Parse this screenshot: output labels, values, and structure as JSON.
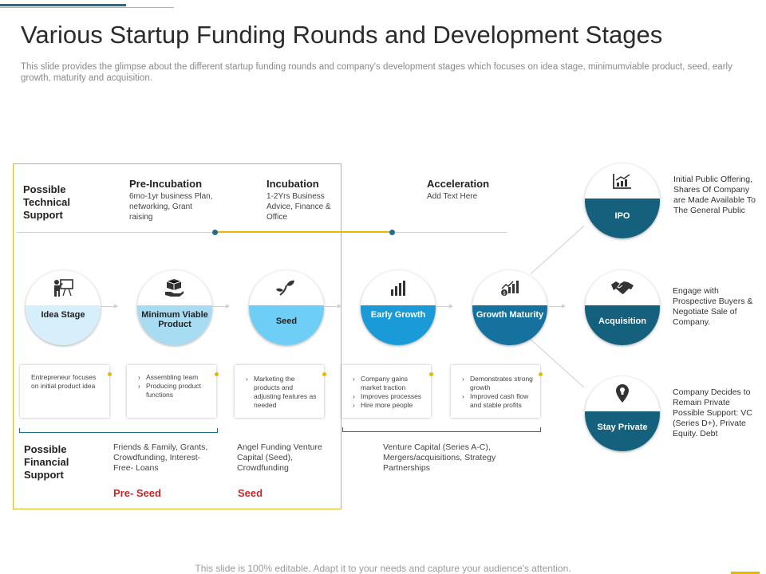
{
  "title": "Various Startup Funding Rounds and Development Stages",
  "subtitle": "This slide provides the glimpse about the different startup funding rounds and company's development stages which focuses on idea stage, minimumviable product, seed, early growth, maturity and acquisition.",
  "technical_support_label": "Possible Technical Support",
  "financial_support_label": "Possible Financial Support",
  "stages": [
    {
      "title": "Pre-Incubation",
      "text": "6mo-1yr business Plan, networking, Grant raising"
    },
    {
      "title": "Incubation",
      "text": "1-2Yrs Business Advice, Finance & Office"
    },
    {
      "title": "Acceleration",
      "text": "Add Text Here"
    }
  ],
  "circles": [
    {
      "label": "Idea Stage",
      "icon": "presentation-icon"
    },
    {
      "label": "Minimum Viable Product",
      "icon": "hand-box-icon"
    },
    {
      "label": "Seed",
      "icon": "sprout-icon"
    },
    {
      "label": "Early Growth",
      "icon": "bar-chart-icon"
    },
    {
      "label": "Growth Maturity",
      "icon": "growth-chart-icon"
    }
  ],
  "cards": [
    {
      "items": [
        "Entrepreneur focuses on initial product idea"
      ],
      "bulleted": false
    },
    {
      "items": [
        "Assembling team",
        "Producing product functions"
      ],
      "bulleted": true
    },
    {
      "items": [
        "Marketing the products and adjusting features as needed"
      ],
      "bulleted": true
    },
    {
      "items": [
        "Company gains market traction",
        "Improves processes",
        "Hire more people"
      ],
      "bulleted": true
    },
    {
      "items": [
        "Demonstrates strong growth",
        "Improved cash flow and stable profits"
      ],
      "bulleted": true
    }
  ],
  "financial": [
    {
      "text": "Friends & Family, Grants, Crowdfunding, Interest-Free- Loans",
      "tag": "Pre- Seed"
    },
    {
      "text": "Angel Funding Venture Capital (Seed), Crowdfunding",
      "tag": "Seed"
    },
    {
      "text": "Venture Capital (Series A-C), Mergers/acquisitions, Strategy Partnerships",
      "tag": ""
    }
  ],
  "outcomes": [
    {
      "label": "IPO",
      "icon": "rising-chart-icon",
      "text": "Initial Public Offering, Shares Of Company are Made Available To The General Public"
    },
    {
      "label": "Acquisition",
      "icon": "handshake-icon",
      "text": "Engage with Prospective Buyers & Negotiate Sale of Company."
    },
    {
      "label": "Stay Private",
      "icon": "location-pin-icon",
      "text": "Company Decides to Remain Private Possible Support: VC (Series D+), Private Equity. Debt"
    }
  ],
  "footer": "This slide is 100% editable. Adapt it to your needs and capture your audience's attention.",
  "colors": {
    "teal": "#1f6f8b",
    "yellow": "#e6b800",
    "light_blue": "#a8dcf3",
    "mid_blue": "#6fcef5",
    "blue": "#1a9ad6",
    "dark_blue": "#15729e",
    "red": "#c0282a"
  }
}
